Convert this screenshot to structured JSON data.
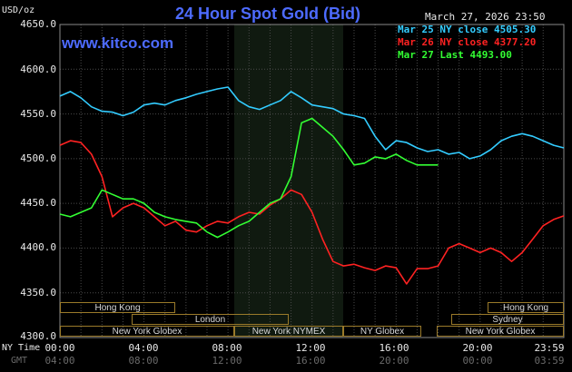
{
  "header": {
    "title": "24 Hour Spot Gold (Bid)",
    "timestamp": "March 27, 2026 23:50",
    "site": "www.kitco.com",
    "unit": "USD/oz"
  },
  "legend": [
    {
      "label": "Mar 25 NY close 4505.30",
      "color": "#33ccff"
    },
    {
      "label": "Mar 26 NY close 4377.20",
      "color": "#ff2222"
    },
    {
      "label": "Mar 27 Last 4493.00",
      "color": "#33ff33"
    }
  ],
  "axis": {
    "row1_label": "NY Time",
    "row2_label": "GMT",
    "x_ticks": [
      "00:00",
      "04:00",
      "08:00",
      "12:00",
      "16:00",
      "20:00",
      "23:59"
    ],
    "x_ticks_gmt": [
      "04:00",
      "08:00",
      "12:00",
      "16:00",
      "20:00",
      "00:00",
      "03:59"
    ],
    "y_ticks": [
      "4650.0",
      "4600.0",
      "4550.0",
      "4500.0",
      "4450.0",
      "4400.0",
      "4350.0",
      "4300.0"
    ]
  },
  "markets": {
    "hong_kong": "Hong Kong",
    "london": "London",
    "ny_globex": "New York Globex",
    "ny_nymex": "New York NYMEX",
    "ny_globex_short": "NY Globex",
    "hong_kong_2": "Hong Kong",
    "sydney": "Sydney",
    "ny_globex_2": "New York Globex"
  },
  "chart_data": {
    "type": "line",
    "title": "24 Hour Spot Gold (Bid)",
    "ylabel": "USD/oz",
    "xlabel": "NY Time",
    "x_range": [
      "00:00",
      "23:59"
    ],
    "ylim": [
      4300,
      4650
    ],
    "grid": true,
    "legend_position": "top-right",
    "series": [
      {
        "name": "Mar 25 NY close 4505.30",
        "color": "#33ccff",
        "x": [
          "00:00",
          "00:30",
          "01:00",
          "01:30",
          "02:00",
          "02:30",
          "03:00",
          "03:30",
          "04:00",
          "04:30",
          "05:00",
          "05:30",
          "06:00",
          "06:30",
          "07:00",
          "07:30",
          "08:00",
          "08:30",
          "09:00",
          "09:30",
          "10:00",
          "10:30",
          "11:00",
          "11:30",
          "12:00",
          "12:30",
          "13:00",
          "13:30",
          "14:00",
          "14:30",
          "15:00",
          "15:30",
          "16:00",
          "16:30",
          "17:00",
          "17:30",
          "18:00",
          "18:30",
          "19:00",
          "19:30",
          "20:00",
          "20:30",
          "21:00",
          "21:30",
          "22:00",
          "22:30",
          "23:00",
          "23:30",
          "23:59"
        ],
        "values": [
          4570,
          4575,
          4568,
          4558,
          4553,
          4552,
          4548,
          4552,
          4560,
          4562,
          4560,
          4565,
          4568,
          4572,
          4575,
          4578,
          4580,
          4565,
          4558,
          4555,
          4560,
          4565,
          4575,
          4568,
          4560,
          4558,
          4556,
          4550,
          4548,
          4545,
          4525,
          4510,
          4520,
          4518,
          4512,
          4508,
          4510,
          4505,
          4507,
          4500,
          4503,
          4510,
          4520,
          4525,
          4528,
          4525,
          4520,
          4515,
          4512
        ]
      },
      {
        "name": "Mar 26 NY close 4377.20",
        "color": "#ff2222",
        "x": [
          "00:00",
          "00:30",
          "01:00",
          "01:30",
          "02:00",
          "02:30",
          "03:00",
          "03:30",
          "04:00",
          "04:30",
          "05:00",
          "05:30",
          "06:00",
          "06:30",
          "07:00",
          "07:30",
          "08:00",
          "08:30",
          "09:00",
          "09:30",
          "10:00",
          "10:30",
          "11:00",
          "11:30",
          "12:00",
          "12:30",
          "13:00",
          "13:30",
          "14:00",
          "14:30",
          "15:00",
          "15:30",
          "16:00",
          "16:30",
          "17:00",
          "17:30",
          "18:00",
          "18:30",
          "19:00",
          "19:30",
          "20:00",
          "20:30",
          "21:00",
          "21:30",
          "22:00",
          "22:30",
          "23:00",
          "23:30",
          "23:59"
        ],
        "values": [
          4515,
          4520,
          4518,
          4505,
          4480,
          4435,
          4445,
          4450,
          4445,
          4435,
          4425,
          4430,
          4420,
          4418,
          4425,
          4430,
          4428,
          4435,
          4440,
          4438,
          4448,
          4455,
          4465,
          4460,
          4440,
          4410,
          4385,
          4380,
          4382,
          4378,
          4375,
          4380,
          4378,
          4360,
          4377,
          4377,
          4380,
          4400,
          4405,
          4400,
          4395,
          4400,
          4395,
          4385,
          4395,
          4410,
          4425,
          4432,
          4436
        ]
      },
      {
        "name": "Mar 27 Last 4493.00",
        "color": "#33ff33",
        "x": [
          "00:00",
          "00:30",
          "01:00",
          "01:30",
          "02:00",
          "02:30",
          "03:00",
          "03:30",
          "04:00",
          "04:30",
          "05:00",
          "05:30",
          "06:00",
          "06:30",
          "07:00",
          "07:30",
          "08:00",
          "08:30",
          "09:00",
          "09:30",
          "10:00",
          "10:30",
          "11:00",
          "11:30",
          "12:00",
          "12:30",
          "13:00",
          "13:30",
          "14:00",
          "14:30",
          "15:00",
          "15:30",
          "16:00",
          "16:30",
          "17:00",
          "17:30",
          "18:00"
        ],
        "values": [
          4438,
          4435,
          4440,
          4445,
          4465,
          4460,
          4455,
          4455,
          4450,
          4440,
          4435,
          4432,
          4430,
          4428,
          4418,
          4412,
          4418,
          4425,
          4430,
          4440,
          4450,
          4455,
          4480,
          4540,
          4545,
          4535,
          4525,
          4510,
          4493,
          4495,
          4502,
          4500,
          4505,
          4498,
          4493,
          4493,
          4493
        ]
      }
    ]
  }
}
